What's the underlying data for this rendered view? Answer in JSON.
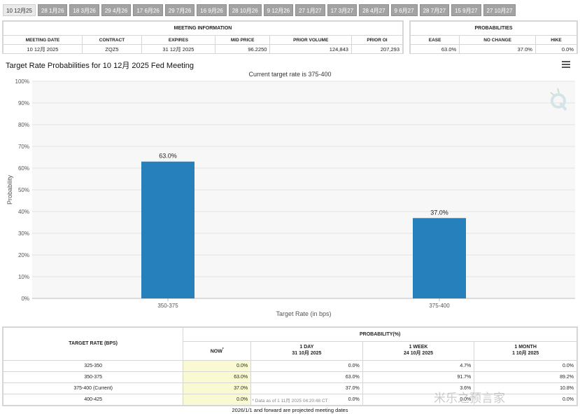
{
  "tabs": [
    "10 12月25",
    "28 1月26",
    "18 3月26",
    "29 4月26",
    "17 6月26",
    "29 7月26",
    "16 9月26",
    "28 10月26",
    "9 12月26",
    "27 1月27",
    "17 3月27",
    "28 4月27",
    "9 6月27",
    "28 7月27",
    "15 9月27",
    "27 10月27"
  ],
  "meeting": {
    "title": "MEETING INFORMATION",
    "headers": [
      "MEETING DATE",
      "CONTRACT",
      "EXPIRES",
      "MID PRICE",
      "PRIOR VOLUME",
      "PRIOR OI"
    ],
    "values": [
      "10 12月 2025",
      "ZQZ5",
      "31 12月 2025",
      "96.2250",
      "124,843",
      "207,293"
    ]
  },
  "probabilities": {
    "title": "PROBABILITIES",
    "headers": [
      "EASE",
      "NO CHANGE",
      "HIKE"
    ],
    "values": [
      "63.0%",
      "37.0%",
      "0.0%"
    ]
  },
  "chart_title": "Target Rate Probabilities for 10 12月 2025 Fed Meeting",
  "chart_data": {
    "type": "bar",
    "title": "Current target rate is 375-400",
    "categories": [
      "350-375",
      "375-400"
    ],
    "values": [
      63.0,
      37.0
    ],
    "data_labels": [
      "63.0%",
      "37.0%"
    ],
    "xlabel": "Target Rate (in bps)",
    "ylabel": "Probability",
    "ylim": [
      0,
      100
    ],
    "yticks": [
      "0%",
      "10%",
      "20%",
      "30%",
      "40%",
      "50%",
      "60%",
      "70%",
      "80%",
      "90%",
      "100%"
    ],
    "grid": true,
    "bar_color": "#2680bb"
  },
  "bottom": {
    "rate_header": "TARGET RATE (BPS)",
    "prob_header": "PROBABILITY(%)",
    "cols": [
      {
        "label": "NOW",
        "sub": "*"
      },
      {
        "label": "1 DAY",
        "sub": "31 10月 2025"
      },
      {
        "label": "1 WEEK",
        "sub": "24 10月 2025"
      },
      {
        "label": "1 MONTH",
        "sub": "1 10月 2025"
      }
    ],
    "rows": [
      {
        "rate": "325-350",
        "now": "0.0%",
        "d1": "0.0%",
        "w1": "4.7%",
        "m1": "0.0%"
      },
      {
        "rate": "350-375",
        "now": "63.0%",
        "d1": "63.0%",
        "w1": "91.7%",
        "m1": "89.2%"
      },
      {
        "rate": "375-400 (Current)",
        "now": "37.0%",
        "d1": "37.0%",
        "w1": "3.6%",
        "m1": "10.8%"
      },
      {
        "rate": "400-425",
        "now": "0.0%",
        "d1": "0.0%",
        "w1": "0.0%",
        "m1": "0.0%"
      }
    ],
    "footnote": "* Data as of 1 11月 2025 04:20:48 CT"
  },
  "footer": "2026/1/1 and forward are projected meeting dates",
  "watermark": "米乐之预言家"
}
